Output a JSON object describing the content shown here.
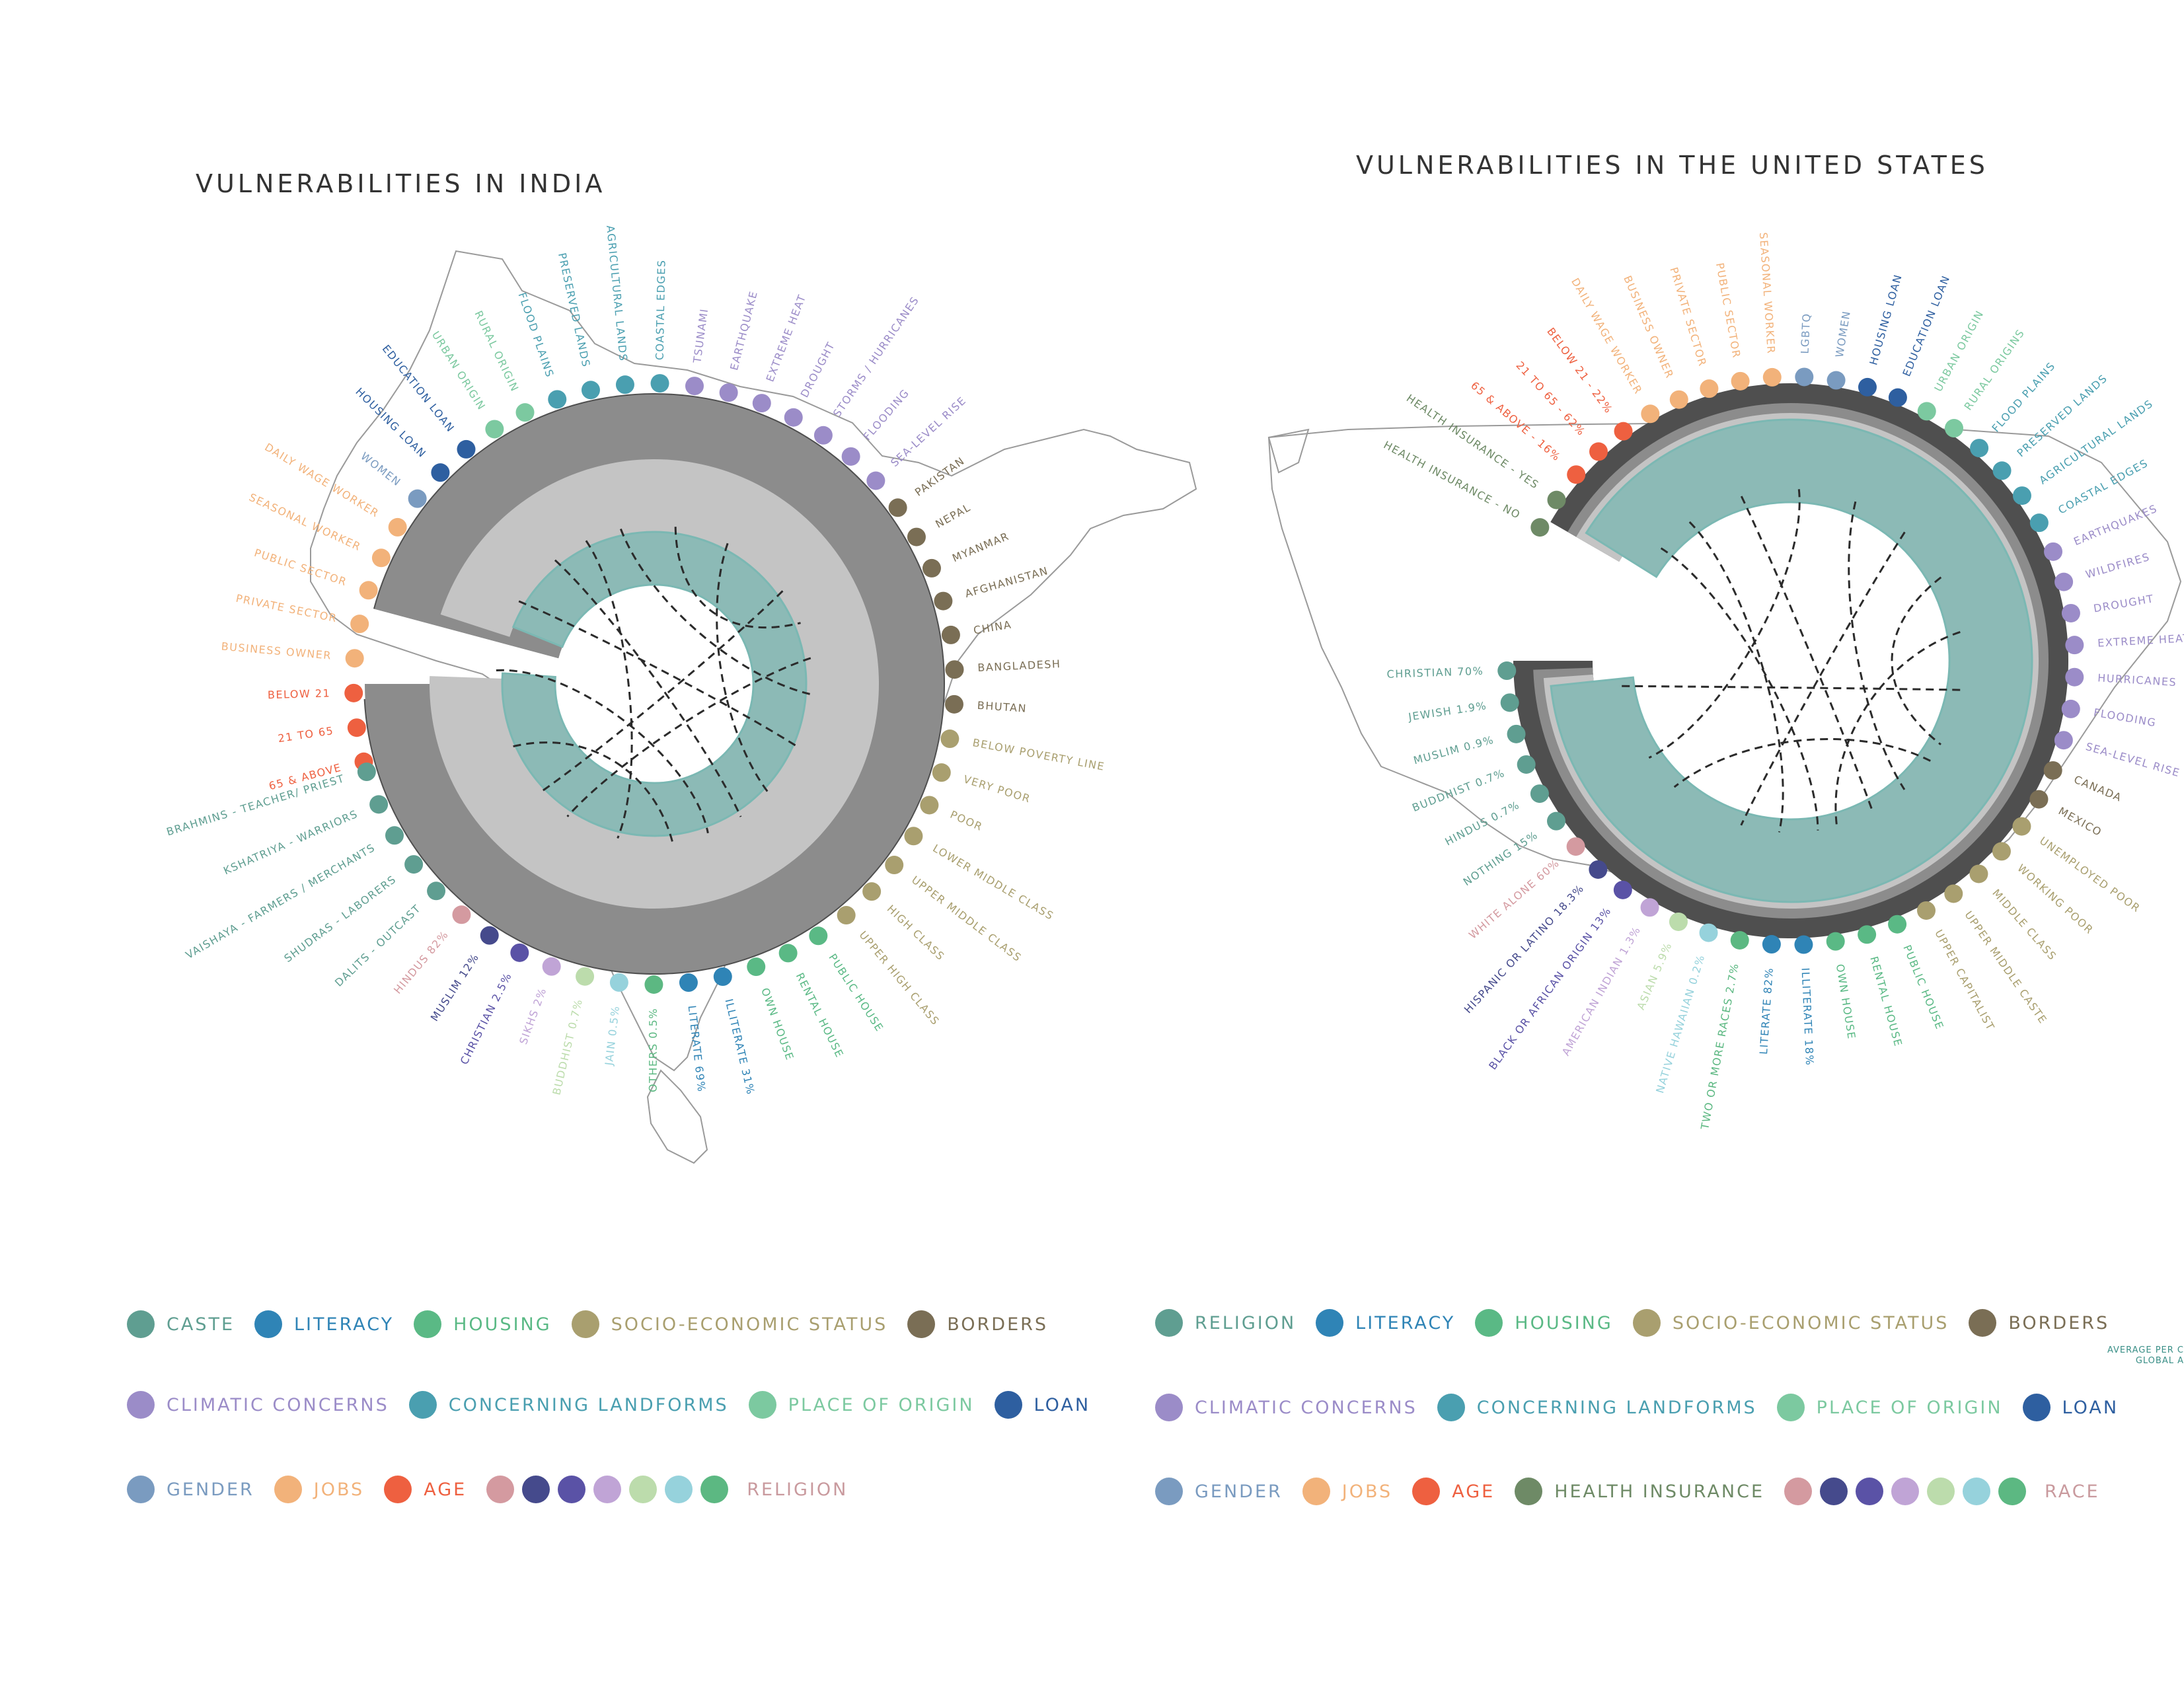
{
  "colors": {
    "caste": "#5f9e91",
    "religion_cat": "#5f9e91",
    "literacy": "#2f84b6",
    "housing": "#5ab985",
    "socio": "#a99f6f",
    "borders": "#7a6e55",
    "climatic": "#9b8cc8",
    "landforms": "#4a9fb0",
    "origin": "#7cc9a0",
    "loan": "#2e5fa0",
    "gender": "#7a9bc0",
    "jobs": "#f2b27a",
    "age": "#ee6040",
    "health": "#6e8a66",
    "r1": "#d49aa0",
    "r2": "#454a8c",
    "r3": "#5a52a6",
    "r4": "#c0a4d6",
    "r5": "#bcdcac",
    "r6": "#96d2dc",
    "r7": "#5cb882",
    "religion_label": "#c99a9e",
    "race_label": "#c99a9e",
    "ring_outer": "#4f4f4f",
    "ring_mid": "#8c8c8c",
    "ring_light": "#c4c4c4",
    "ring_teal": "#8cbab6",
    "ring_teal_dark": "#7bb8b3",
    "map": "#9a9a9a"
  },
  "india": {
    "title": "VULNERABILITIES IN INDIA",
    "labels": [
      {
        "text": "65 & ABOVE",
        "color": "age"
      },
      {
        "text": "21 TO 65",
        "color": "age"
      },
      {
        "text": "BELOW 21",
        "color": "age"
      },
      {
        "text": "BUSINESS OWNER",
        "color": "jobs"
      },
      {
        "text": "PRIVATE SECTOR",
        "color": "jobs"
      },
      {
        "text": "PUBLIC SECTOR",
        "color": "jobs"
      },
      {
        "text": "SEASONAL WORKER",
        "color": "jobs"
      },
      {
        "text": "DAILY WAGE WORKER",
        "color": "jobs"
      },
      {
        "text": "WOMEN",
        "color": "gender"
      },
      {
        "text": "HOUSING LOAN",
        "color": "loan"
      },
      {
        "text": "EDUCATION LOAN",
        "color": "loan"
      },
      {
        "text": "URBAN ORIGIN",
        "color": "origin"
      },
      {
        "text": "RURAL ORIGIN",
        "color": "origin"
      },
      {
        "text": "FLOOD PLAINS",
        "color": "landforms"
      },
      {
        "text": "PRESERVED LANDS",
        "color": "landforms"
      },
      {
        "text": "AGRICULTURAL LANDS",
        "color": "landforms"
      },
      {
        "text": "COASTAL EDGES",
        "color": "landforms"
      },
      {
        "text": "TSUNAMI",
        "color": "climatic"
      },
      {
        "text": "EARTHQUAKE",
        "color": "climatic"
      },
      {
        "text": "EXTREME HEAT",
        "color": "climatic"
      },
      {
        "text": "DROUGHT",
        "color": "climatic"
      },
      {
        "text": "STORMS / HURRICANES",
        "color": "climatic"
      },
      {
        "text": "FLOODING",
        "color": "climatic"
      },
      {
        "text": "SEA-LEVEL RISE",
        "color": "climatic"
      },
      {
        "text": "PAKISTAN",
        "color": "borders"
      },
      {
        "text": "NEPAL",
        "color": "borders"
      },
      {
        "text": "MYANMAR",
        "color": "borders"
      },
      {
        "text": "AFGHANISTAN",
        "color": "borders"
      },
      {
        "text": "CHINA",
        "color": "borders"
      },
      {
        "text": "BANGLADESH",
        "color": "borders"
      },
      {
        "text": "BHUTAN",
        "color": "borders"
      },
      {
        "text": "BELOW POVERTY LINE",
        "color": "socio"
      },
      {
        "text": "VERY POOR",
        "color": "socio"
      },
      {
        "text": "POOR",
        "color": "socio"
      },
      {
        "text": "LOWER MIDDLE CLASS",
        "color": "socio"
      },
      {
        "text": "UPPER MIDDLE CLASS",
        "color": "socio"
      },
      {
        "text": "HIGH CLASS",
        "color": "socio"
      },
      {
        "text": "UPPER HIGH CLASS",
        "color": "socio"
      },
      {
        "text": "PUBLIC HOUSE",
        "color": "housing"
      },
      {
        "text": "RENTAL HOUSE",
        "color": "housing"
      },
      {
        "text": "OWN HOUSE",
        "color": "housing"
      },
      {
        "text": "ILLITERATE 31%",
        "color": "literacy"
      },
      {
        "text": "LITERATE 69%",
        "color": "literacy"
      },
      {
        "text": "OTHERS 0.5%",
        "color": "r7"
      },
      {
        "text": "JAIN 0.5%",
        "color": "r6"
      },
      {
        "text": "BUDDHIST 0.7%",
        "color": "r5"
      },
      {
        "text": "SIKHS 2%",
        "color": "r4"
      },
      {
        "text": "CHRISTIAN 2.5%",
        "color": "r3"
      },
      {
        "text": "MUSLIM 12%",
        "color": "r2"
      },
      {
        "text": "HINDUS 82%",
        "color": "r1"
      },
      {
        "text": "DALITS - OUTCAST",
        "color": "caste"
      },
      {
        "text": "SHUDRAS - LABORERS",
        "color": "caste"
      },
      {
        "text": "VAISHAYA - FARMERS / MERCHANTS",
        "color": "caste"
      },
      {
        "text": "KSHATRIYA - WARRIORS",
        "color": "caste"
      },
      {
        "text": "BRAHMINS - TEACHER/ PRIEST",
        "color": "caste"
      }
    ],
    "legend_rows": [
      [
        {
          "label": "CASTE",
          "dots": [
            "caste"
          ],
          "color": "caste"
        },
        {
          "label": "LITERACY",
          "dots": [
            "literacy"
          ],
          "color": "literacy"
        },
        {
          "label": "HOUSING",
          "dots": [
            "housing"
          ],
          "color": "housing"
        },
        {
          "label": "SOCIO-ECONOMIC STATUS",
          "dots": [
            "socio"
          ],
          "color": "socio"
        },
        {
          "label": "BORDERS",
          "dots": [
            "borders"
          ],
          "color": "borders"
        }
      ],
      [
        {
          "label": "CLIMATIC CONCERNS",
          "dots": [
            "climatic"
          ],
          "color": "climatic"
        },
        {
          "label": "CONCERNING LANDFORMS",
          "dots": [
            "landforms"
          ],
          "color": "landforms"
        },
        {
          "label": "PLACE OF ORIGIN",
          "dots": [
            "origin"
          ],
          "color": "origin"
        },
        {
          "label": "LOAN",
          "dots": [
            "loan"
          ],
          "color": "loan"
        }
      ],
      [
        {
          "label": "GENDER",
          "dots": [
            "gender"
          ],
          "color": "gender"
        },
        {
          "label": "JOBS",
          "dots": [
            "jobs"
          ],
          "color": "jobs"
        },
        {
          "label": "AGE",
          "dots": [
            "age"
          ],
          "color": "age"
        },
        {
          "label": "RELIGION",
          "dots": [
            "r1",
            "r2",
            "r3",
            "r4",
            "r5",
            "r6",
            "r7"
          ],
          "color": "religion_label"
        }
      ]
    ]
  },
  "us": {
    "title": "VULNERABILITIES IN THE UNITED STATES",
    "labels": [
      {
        "text": "HEALTH INSURANCE - NO",
        "color": "health"
      },
      {
        "text": "HEALTH INSURANCE - YES",
        "color": "health"
      },
      {
        "text": "65 & ABOVE - 16%",
        "color": "age"
      },
      {
        "text": "21 TO 65 - 62%",
        "color": "age"
      },
      {
        "text": "BELOW 21 - 22%",
        "color": "age"
      },
      {
        "text": "DAILY WAGE WORKER",
        "color": "jobs"
      },
      {
        "text": "BUSINESS OWNER",
        "color": "jobs"
      },
      {
        "text": "PRIVATE SECTOR",
        "color": "jobs"
      },
      {
        "text": "PUBLIC SECTOR",
        "color": "jobs"
      },
      {
        "text": "SEASONAL WORKER",
        "color": "jobs"
      },
      {
        "text": "LGBTQ",
        "color": "gender"
      },
      {
        "text": "WOMEN",
        "color": "gender"
      },
      {
        "text": "HOUSING LOAN",
        "color": "loan"
      },
      {
        "text": "EDUCATION LOAN",
        "color": "loan"
      },
      {
        "text": "URBAN ORIGIN",
        "color": "origin"
      },
      {
        "text": "RURAL ORIGINS",
        "color": "origin"
      },
      {
        "text": "FLOOD PLAINS",
        "color": "landforms"
      },
      {
        "text": "PRESERVED LANDS",
        "color": "landforms"
      },
      {
        "text": "AGRICULTURAL LANDS",
        "color": "landforms"
      },
      {
        "text": "COASTAL EDGES",
        "color": "landforms"
      },
      {
        "text": "EARTHQUAKES",
        "color": "climatic"
      },
      {
        "text": "WILDFIRES",
        "color": "climatic"
      },
      {
        "text": "DROUGHT",
        "color": "climatic"
      },
      {
        "text": "EXTREME HEAT",
        "color": "climatic"
      },
      {
        "text": "HURRICANES",
        "color": "climatic"
      },
      {
        "text": "FLOODING",
        "color": "climatic"
      },
      {
        "text": "SEA-LEVEL RISE",
        "color": "climatic"
      },
      {
        "text": "CANADA",
        "color": "borders"
      },
      {
        "text": "MEXICO",
        "color": "borders"
      },
      {
        "text": "UNEMPLOYED POOR",
        "color": "socio"
      },
      {
        "text": "WORKING POOR",
        "color": "socio"
      },
      {
        "text": "MIDDLE CLASS",
        "color": "socio"
      },
      {
        "text": "UPPER MIDDLE CASTE",
        "color": "socio"
      },
      {
        "text": "UPPER CAPITALIST",
        "color": "socio"
      },
      {
        "text": "PUBLIC HOUSE",
        "color": "housing"
      },
      {
        "text": "RENTAL HOUSE",
        "color": "housing"
      },
      {
        "text": "OWN HOUSE",
        "color": "housing"
      },
      {
        "text": "ILLITERATE 18%",
        "color": "literacy"
      },
      {
        "text": "LITERATE 82%",
        "color": "literacy"
      },
      {
        "text": "TWO OR MORE RACES 2.7%",
        "color": "r7"
      },
      {
        "text": "NATIVE HAWAIIAN 0.2%",
        "color": "r6"
      },
      {
        "text": "ASIAN 5.9%",
        "color": "r5"
      },
      {
        "text": "AMERICAN INDIAN 1.3%",
        "color": "r4"
      },
      {
        "text": "BLACK OR AFRICAN ORIGIN 13%",
        "color": "r3"
      },
      {
        "text": "HISPANIC OR LATINO 18.3%",
        "color": "r2"
      },
      {
        "text": "WHITE ALONE 60%",
        "color": "r1"
      },
      {
        "text": "NOTHING 15%",
        "color": "caste"
      },
      {
        "text": "HINDUS 0.7%",
        "color": "caste"
      },
      {
        "text": "BUDDHIST 0.7%",
        "color": "caste"
      },
      {
        "text": "MUSLIM 0.9%",
        "color": "caste"
      },
      {
        "text": "JEWISH 1.9%",
        "color": "caste"
      },
      {
        "text": "CHRISTIAN 70%",
        "color": "caste"
      }
    ],
    "legend_rows": [
      [
        {
          "label": "RELIGION",
          "dots": [
            "religion_cat"
          ],
          "color": "religion_cat"
        },
        {
          "label": "LITERACY",
          "dots": [
            "literacy"
          ],
          "color": "literacy"
        },
        {
          "label": "HOUSING",
          "dots": [
            "housing"
          ],
          "color": "housing"
        },
        {
          "label": "SOCIO-ECONOMIC STATUS",
          "dots": [
            "socio"
          ],
          "color": "socio"
        },
        {
          "label": "BORDERS",
          "dots": [
            "borders"
          ],
          "color": "borders"
        }
      ],
      [
        {
          "label": "CLIMATIC CONCERNS",
          "dots": [
            "climatic"
          ],
          "color": "climatic"
        },
        {
          "label": "CONCERNING LANDFORMS",
          "dots": [
            "landforms"
          ],
          "color": "landforms"
        },
        {
          "label": "PLACE OF ORIGIN",
          "dots": [
            "origin"
          ],
          "color": "origin"
        },
        {
          "label": "LOAN",
          "dots": [
            "loan"
          ],
          "color": "loan"
        }
      ],
      [
        {
          "label": "GENDER",
          "dots": [
            "gender"
          ],
          "color": "gender"
        },
        {
          "label": "JOBS",
          "dots": [
            "jobs"
          ],
          "color": "jobs"
        },
        {
          "label": "AGE",
          "dots": [
            "age"
          ],
          "color": "age"
        },
        {
          "label": "HEALTH INSURANCE",
          "dots": [
            "health"
          ],
          "color": "health"
        },
        {
          "label": "RACE",
          "dots": [
            "r1",
            "r2",
            "r3",
            "r4",
            "r5",
            "r6",
            "r7"
          ],
          "color": "race_label"
        }
      ]
    ]
  },
  "side_note": {
    "line1": "AVERAGE PER C",
    "line2": "GLOBAL A"
  }
}
